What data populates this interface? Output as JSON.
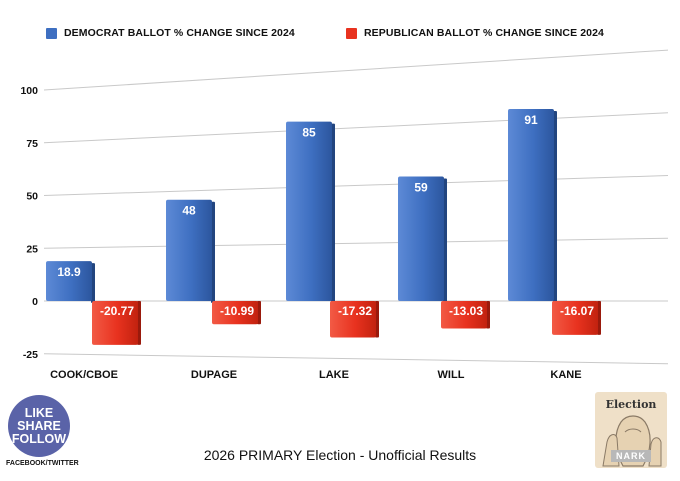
{
  "legend": [
    {
      "label": "DEMOCRAT BALLOT % CHANGE SINCE 2024",
      "color": "#3e6fc1"
    },
    {
      "label": "REPUBLICAN BALLOT % CHANGE SINCE 2024",
      "color": "#e8321f"
    }
  ],
  "chart_data": {
    "type": "bar",
    "categories": [
      "COOK/CBOE",
      "DUPAGE",
      "LAKE",
      "WILL",
      "KANE"
    ],
    "series": [
      {
        "name": "DEMOCRAT BALLOT % CHANGE SINCE 2024",
        "color": "#3e6fc1",
        "values": [
          18.9,
          48,
          85,
          59,
          91
        ],
        "labels": [
          "18.9",
          "48",
          "85",
          "59",
          "91"
        ]
      },
      {
        "name": "REPUBLICAN BALLOT % CHANGE SINCE 2024",
        "color": "#e8321f",
        "values": [
          -20.77,
          -10.99,
          -17.32,
          -13.03,
          -16.07
        ],
        "labels": [
          "-20.77",
          "-10.99",
          "-17.32",
          "-13.03",
          "-16.07"
        ]
      }
    ],
    "ylim": [
      -25,
      100
    ],
    "yticks": [
      100,
      75,
      50,
      25,
      0,
      -25
    ],
    "ytick_labels": [
      "100",
      "75",
      "50",
      "25",
      "0",
      "-25"
    ],
    "grid": true,
    "legend_position": "top"
  },
  "badge": {
    "line1": "LIKE",
    "line2": "SHARE",
    "line3": "FOLLOW"
  },
  "social": "FACEBOOK/TWITTER",
  "footer": "2026 PRIMARY Election - Unofficial Results",
  "logo": {
    "title": "Election",
    "brand": "NARK"
  }
}
